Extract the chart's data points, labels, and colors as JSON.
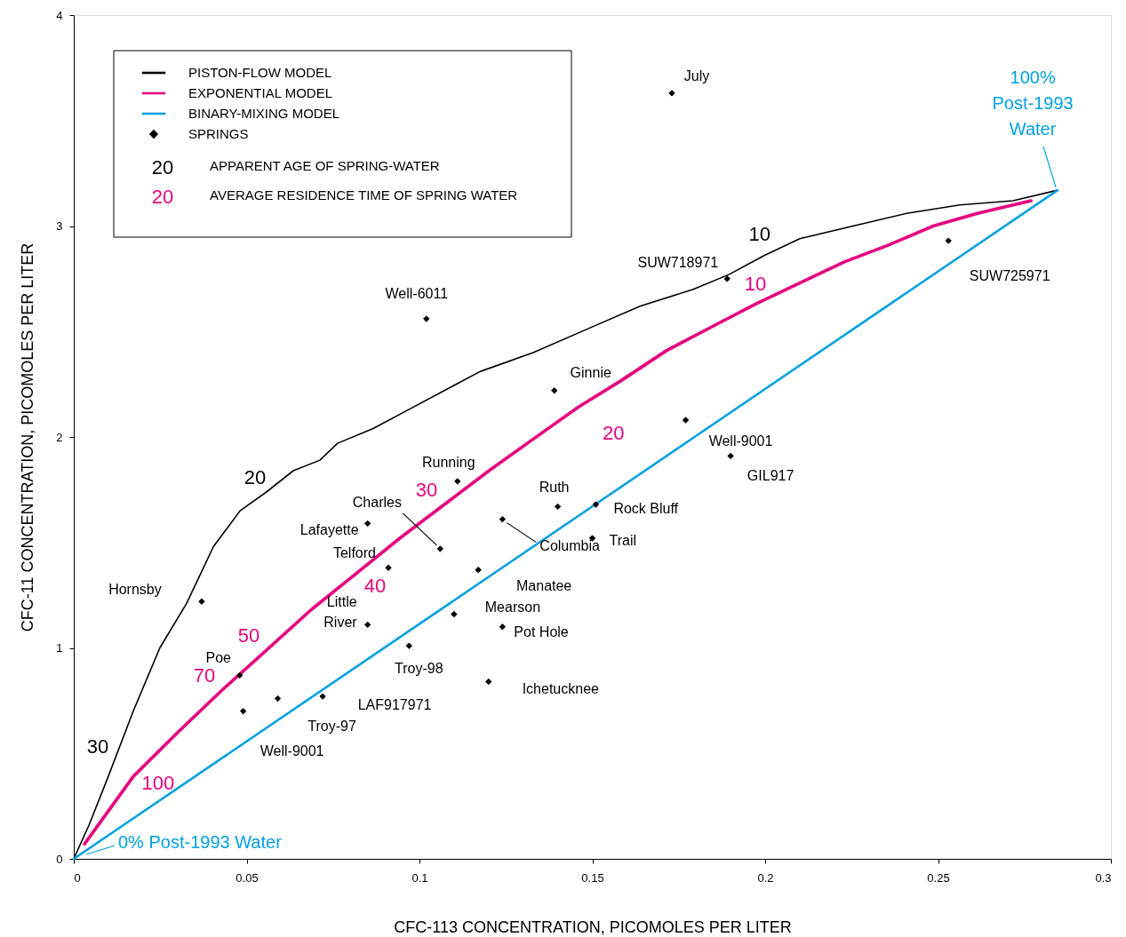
{
  "chart_data": {
    "type": "line",
    "xlabel": "CFC-113 CONCENTRATION, PICOMOLES PER LITER",
    "ylabel": "CFC-11 CONCENTRATION, PICOMOLES PER LITER",
    "xlim": [
      0,
      0.3
    ],
    "ylim": [
      0,
      4
    ],
    "xticks": [
      0,
      0.05,
      0.1,
      0.15,
      0.2,
      0.25,
      0.3
    ],
    "yticks": [
      0,
      1,
      2,
      3,
      4
    ],
    "legend": "top left",
    "series": [
      {
        "name": "PISTON-FLOW MODEL",
        "color": "#000000",
        "x": [
          0,
          0.0044,
          0.0095,
          0.0172,
          0.0249,
          0.0326,
          0.0404,
          0.0481,
          0.0558,
          0.0635,
          0.0712,
          0.0763,
          0.0866,
          0.0969,
          0.1072,
          0.1175,
          0.1329,
          0.1483,
          0.1638,
          0.1792,
          0.1895,
          0.1997,
          0.21,
          0.2254,
          0.2409,
          0.2563,
          0.2717,
          0.2846
        ],
        "values": [
          0,
          0.16,
          0.37,
          0.7,
          1.0,
          1.21,
          1.48,
          1.65,
          1.74,
          1.84,
          1.89,
          1.97,
          2.04,
          2.13,
          2.22,
          2.31,
          2.4,
          2.51,
          2.62,
          2.7,
          2.77,
          2.86,
          2.94,
          3.0,
          3.06,
          3.1,
          3.12,
          3.17
        ]
      },
      {
        "name": "EXPONENTIAL MODEL",
        "color": "#e6007e",
        "x": [
          0.0031,
          0.0172,
          0.0301,
          0.0429,
          0.0558,
          0.0686,
          0.0815,
          0.0943,
          0.1072,
          0.1201,
          0.1329,
          0.1458,
          0.1586,
          0.1715,
          0.1843,
          0.1972,
          0.21,
          0.2229,
          0.2357,
          0.2486,
          0.2614,
          0.2769
        ],
        "values": [
          0.07,
          0.39,
          0.6,
          0.8,
          0.99,
          1.18,
          1.35,
          1.52,
          1.68,
          1.84,
          1.99,
          2.14,
          2.27,
          2.41,
          2.52,
          2.63,
          2.73,
          2.83,
          2.91,
          3.0,
          3.06,
          3.12
        ]
      },
      {
        "name": "BINARY-MIXING MODEL",
        "color": "#00a0e0",
        "x": [
          0,
          0.2846
        ],
        "values": [
          0,
          3.17
        ]
      },
      {
        "name": "SPRINGS",
        "type": "scatter",
        "color": "#000000",
        "marker": "diamond",
        "x": [
          0.173,
          0.189,
          0.253,
          0.102,
          0.139,
          0.177,
          0.19,
          0.111,
          0.14,
          0.151,
          0.106,
          0.124,
          0.085,
          0.15,
          0.091,
          0.117,
          0.11,
          0.085,
          0.124,
          0.097,
          0.12,
          0.037,
          0.048,
          0.049,
          0.059,
          0.072
        ],
        "values": [
          3.63,
          2.75,
          2.93,
          2.56,
          2.22,
          2.08,
          1.91,
          1.79,
          1.67,
          1.68,
          1.47,
          1.61,
          1.59,
          1.52,
          1.38,
          1.37,
          1.16,
          1.11,
          1.1,
          1.01,
          0.84,
          1.22,
          0.87,
          0.7,
          0.76,
          0.77
        ]
      }
    ],
    "annotations": [
      "20",
      "APPARENT AGE OF SPRING-WATER",
      "20",
      "AVERAGE RESIDENCE TIME OF SPRING WATER",
      {
        "text": "July",
        "x": 0.173,
        "y": 3.63
      },
      {
        "text": "SUW718971",
        "x": 0.189,
        "y": 2.75
      },
      {
        "text": "SUW725971",
        "x": 0.253,
        "y": 2.93
      },
      {
        "text": "Well-6011",
        "x": 0.102,
        "y": 2.56
      },
      {
        "text": "Ginnie",
        "x": 0.139,
        "y": 2.22
      },
      {
        "text": "Well-9001",
        "x": 0.177,
        "y": 2.08
      },
      {
        "text": "GIL917",
        "x": 0.19,
        "y": 1.91
      },
      {
        "text": "Running",
        "x": 0.111,
        "y": 1.79
      },
      {
        "text": "Ruth",
        "x": 0.14,
        "y": 1.67
      },
      {
        "text": "Rock Bluff",
        "x": 0.151,
        "y": 1.68
      },
      {
        "text": "Charles",
        "x": 0.106,
        "y": 1.47
      },
      {
        "text": "Columbia",
        "x": 0.124,
        "y": 1.61
      },
      {
        "text": "Lafayette",
        "x": 0.085,
        "y": 1.59
      },
      {
        "text": "Trail",
        "x": 0.15,
        "y": 1.52
      },
      {
        "text": "Telford",
        "x": 0.091,
        "y": 1.38
      },
      {
        "text": "Manatee",
        "x": 0.117,
        "y": 1.37
      },
      {
        "text": "Mearson",
        "x": 0.11,
        "y": 1.16
      },
      {
        "text": "Little River",
        "x": 0.085,
        "y": 1.11
      },
      {
        "text": "Pot Hole",
        "x": 0.124,
        "y": 1.1
      },
      {
        "text": "Troy-98",
        "x": 0.097,
        "y": 1.01
      },
      {
        "text": "Ichetucknee",
        "x": 0.12,
        "y": 0.84
      },
      {
        "text": "Hornsby",
        "x": 0.037,
        "y": 1.22
      },
      {
        "text": "Poe",
        "x": 0.048,
        "y": 0.87
      },
      {
        "text": "Well-9001",
        "x": 0.049,
        "y": 0.7
      },
      {
        "text": "Troy-97",
        "x": 0.059,
        "y": 0.76
      },
      {
        "text": "LAF917971",
        "x": 0.072,
        "y": 0.77
      },
      {
        "text": "10",
        "x": 0.1997,
        "y": 2.86
      },
      {
        "text": "20",
        "x": 0.0481,
        "y": 1.65
      },
      {
        "text": "30",
        "x": 0.0095,
        "y": 0.37
      },
      {
        "text": "10",
        "x": 0.1972,
        "y": 2.63
      },
      {
        "text": "20",
        "x": 0.1458,
        "y": 2.14
      },
      {
        "text": "30",
        "x": 0.1072,
        "y": 1.68
      },
      {
        "text": "40",
        "x": 0.0815,
        "y": 1.35
      },
      {
        "text": "50",
        "x": 0.0558,
        "y": 0.99
      },
      {
        "text": "70",
        "x": 0.0429,
        "y": 0.8
      },
      {
        "text": "100",
        "x": 0.0172,
        "y": 0.39
      },
      {
        "text": "100% Post-1993 Water",
        "x": 0.2846,
        "y": 3.17
      },
      {
        "text": "0% Post-1993 Water",
        "x": 0,
        "y": 0
      }
    ]
  }
}
